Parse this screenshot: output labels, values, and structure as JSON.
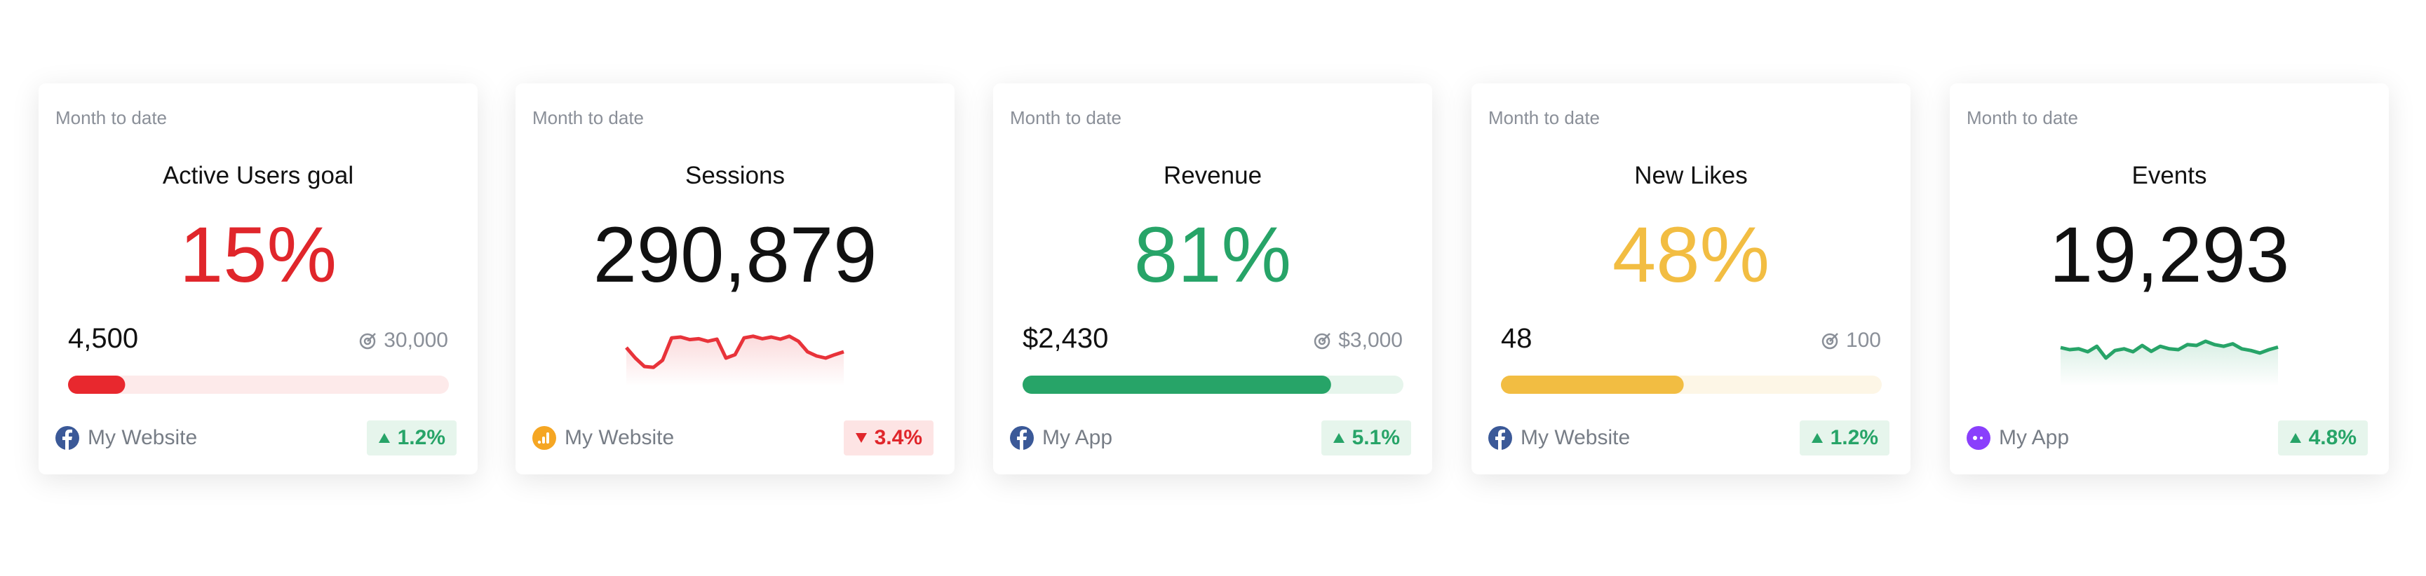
{
  "cards": [
    {
      "label": "Month to date",
      "title": "Active Users goal",
      "headline": "15%",
      "headline_color": "#e0262b",
      "kind": "progress",
      "current": "4,500",
      "target": "30,000",
      "progress": 15,
      "color": "#e8282e",
      "track_color": "#fdeaea",
      "icon": "facebook",
      "source": "My Website",
      "change": "1.2%",
      "direction": "up"
    },
    {
      "label": "Month to date",
      "title": "Sessions",
      "headline": "290,879",
      "headline_color": "#111111",
      "kind": "sparkline",
      "spark": [
        55,
        30,
        10,
        8,
        25,
        78,
        80,
        74,
        76,
        70,
        75,
        30,
        38,
        78,
        82,
        76,
        80,
        75,
        82,
        70,
        45,
        35,
        30,
        38,
        45
      ],
      "color": "#e8333a",
      "icon": "analytics",
      "source": "My Website",
      "change": "3.4%",
      "direction": "down"
    },
    {
      "label": "Month to date",
      "title": "Revenue",
      "headline": "81%",
      "headline_color": "#27a468",
      "kind": "progress",
      "current": "$2,430",
      "target": "$3,000",
      "progress": 81,
      "color": "#27a468",
      "track_color": "#e6f5ec",
      "icon": "facebook",
      "source": "My App",
      "change": "5.1%",
      "direction": "up"
    },
    {
      "label": "Month to date",
      "title": "New Likes",
      "headline": "48%",
      "headline_color": "#f2bd42",
      "kind": "progress",
      "current": "48",
      "target": "100",
      "progress": 48,
      "color": "#f2bd42",
      "track_color": "#fdf6e6",
      "icon": "facebook",
      "source": "My Website",
      "change": "1.2%",
      "direction": "up"
    },
    {
      "label": "Month to date",
      "title": "Events",
      "headline": "19,293",
      "headline_color": "#111111",
      "kind": "sparkline",
      "spark": [
        55,
        50,
        52,
        45,
        58,
        30,
        48,
        52,
        45,
        60,
        46,
        58,
        52,
        50,
        62,
        60,
        70,
        62,
        58,
        64,
        52,
        48,
        42,
        50,
        56
      ],
      "color": "#27a468",
      "icon": "app",
      "source": "My App",
      "change": "4.8%",
      "direction": "up"
    }
  ]
}
